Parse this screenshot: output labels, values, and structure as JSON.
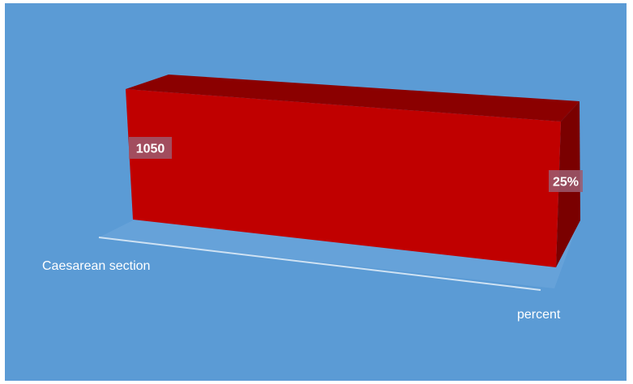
{
  "chart_data": {
    "type": "bar",
    "style": "3d-perspective",
    "categories": [
      "Caesarean section",
      "percent"
    ],
    "values": [
      1050,
      25
    ],
    "data_labels": [
      "1050",
      "25%"
    ],
    "title": "",
    "xlabel": "",
    "ylabel": "",
    "grid": false,
    "legend": "none",
    "colors": {
      "background": "#5b9bd5",
      "floor": "#6fa8dc",
      "bar_front": "#c00000",
      "bar_top": "#8b0000",
      "bar_side": "#7a0000",
      "label_box": "#9c5a6e"
    }
  }
}
